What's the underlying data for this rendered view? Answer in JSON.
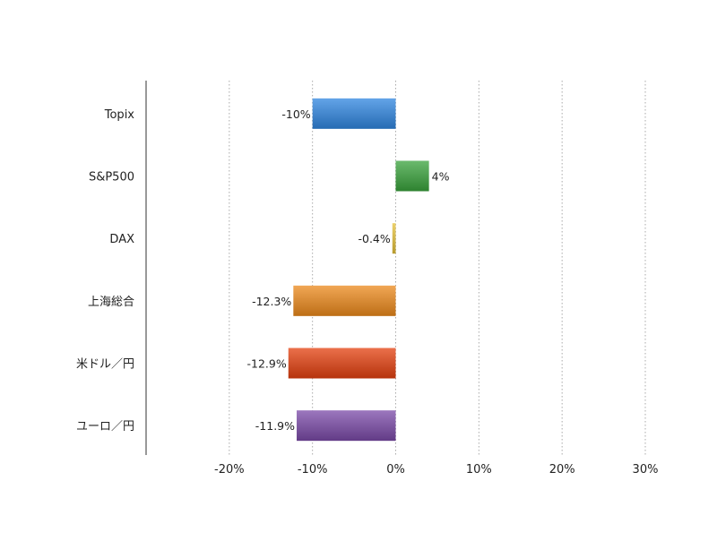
{
  "chart_data": {
    "type": "bar",
    "orientation": "horizontal",
    "categories": [
      "Topix",
      "S&P500",
      "DAX",
      "上海総合",
      "米ドル／円",
      "ユーロ／円"
    ],
    "values": [
      -10,
      4,
      -0.4,
      -12.3,
      -12.9,
      -11.9
    ],
    "data_labels": [
      "-10%",
      "4%",
      "-0.4%",
      "-12.3%",
      "-12.9%",
      "-11.9%"
    ],
    "colors": [
      "#2f86e0",
      "#3aa33c",
      "#e6c23a",
      "#ec8a1c",
      "#e4400f",
      "#7b4aa8"
    ],
    "xlim": [
      -30,
      30
    ],
    "xticks": [
      -20,
      -10,
      0,
      10,
      20,
      30
    ],
    "xtick_labels": [
      "-20%",
      "-10%",
      "0%",
      "10%",
      "20%",
      "30%"
    ],
    "grid": "vertical dotted",
    "title": "",
    "xlabel": "",
    "ylabel": ""
  }
}
